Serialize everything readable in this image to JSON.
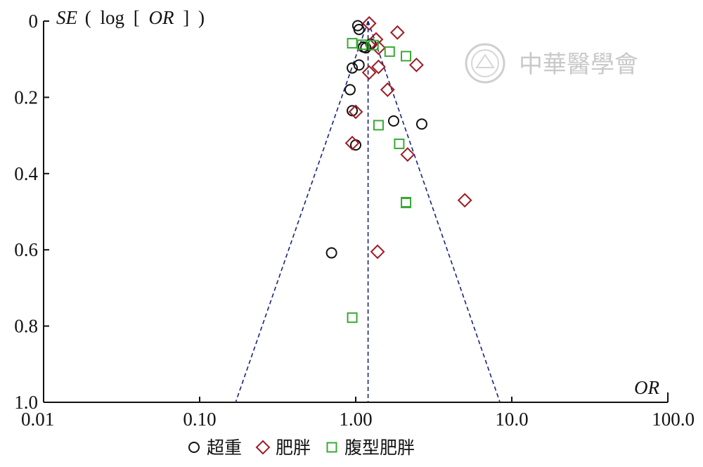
{
  "chart_data": {
    "type": "scatter",
    "title": "",
    "y_axis_title": {
      "prefix": "SE",
      "open": "(",
      "log": "log",
      "bracket_open": "[",
      "var": "OR",
      "bracket_close": "]",
      "close": ")"
    },
    "x_axis_title": "OR",
    "x_scale": "log",
    "xlim": [
      0.01,
      100.0
    ],
    "ylim": [
      0,
      1.0
    ],
    "y_inverted": true,
    "x_ticks": [
      {
        "value": 0.01,
        "label": "0.01"
      },
      {
        "value": 0.1,
        "label": "0.10"
      },
      {
        "value": 1.0,
        "label": "1.00"
      },
      {
        "value": 10.0,
        "label": "10.0"
      },
      {
        "value": 100.0,
        "label": "100.0"
      }
    ],
    "y_ticks": [
      {
        "value": 0,
        "label": "0"
      },
      {
        "value": 0.2,
        "label": "0.2"
      },
      {
        "value": 0.4,
        "label": "0.4"
      },
      {
        "value": 0.6,
        "label": "0.6"
      },
      {
        "value": 0.8,
        "label": "0.8"
      },
      {
        "value": 1.0,
        "label": "1.0"
      }
    ],
    "pooled_or": 1.2,
    "funnel": {
      "lower_at_base": 0.17,
      "upper_at_base": 8.4,
      "base_se": 1.0
    },
    "line_color": "#1a237e",
    "legend_position": "bottom",
    "series": [
      {
        "name": "超重",
        "marker": "circle",
        "color": "#111111",
        "points": [
          {
            "x": 1.03,
            "y": 0.012
          },
          {
            "x": 1.05,
            "y": 0.022
          },
          {
            "x": 1.25,
            "y": 0.06
          },
          {
            "x": 1.12,
            "y": 0.068
          },
          {
            "x": 1.16,
            "y": 0.07
          },
          {
            "x": 1.05,
            "y": 0.115
          },
          {
            "x": 0.95,
            "y": 0.123
          },
          {
            "x": 0.92,
            "y": 0.18
          },
          {
            "x": 0.95,
            "y": 0.235
          },
          {
            "x": 1.75,
            "y": 0.262
          },
          {
            "x": 2.65,
            "y": 0.27
          },
          {
            "x": 1.0,
            "y": 0.325
          },
          {
            "x": 0.7,
            "y": 0.608
          }
        ]
      },
      {
        "name": "肥胖",
        "marker": "diamond",
        "color": "#9e1b24",
        "points": [
          {
            "x": 1.22,
            "y": 0.006
          },
          {
            "x": 1.85,
            "y": 0.03
          },
          {
            "x": 1.35,
            "y": 0.048
          },
          {
            "x": 1.4,
            "y": 0.07
          },
          {
            "x": 2.45,
            "y": 0.115
          },
          {
            "x": 1.4,
            "y": 0.12
          },
          {
            "x": 1.22,
            "y": 0.135
          },
          {
            "x": 1.6,
            "y": 0.18
          },
          {
            "x": 1.0,
            "y": 0.238
          },
          {
            "x": 0.95,
            "y": 0.32
          },
          {
            "x": 2.15,
            "y": 0.35
          },
          {
            "x": 5.0,
            "y": 0.47
          },
          {
            "x": 1.38,
            "y": 0.605
          }
        ]
      },
      {
        "name": "腹型肥胖",
        "marker": "square",
        "color": "#3aa935",
        "points": [
          {
            "x": 0.95,
            "y": 0.058
          },
          {
            "x": 1.1,
            "y": 0.062
          },
          {
            "x": 1.3,
            "y": 0.063
          },
          {
            "x": 1.65,
            "y": 0.08
          },
          {
            "x": 2.1,
            "y": 0.092
          },
          {
            "x": 1.4,
            "y": 0.273
          },
          {
            "x": 1.9,
            "y": 0.322
          },
          {
            "x": 2.1,
            "y": 0.475
          },
          {
            "x": 2.1,
            "y": 0.477
          },
          {
            "x": 0.95,
            "y": 0.778
          }
        ]
      }
    ]
  },
  "watermark": {
    "text": "中華醫學會",
    "color": "#c9c9c9"
  }
}
